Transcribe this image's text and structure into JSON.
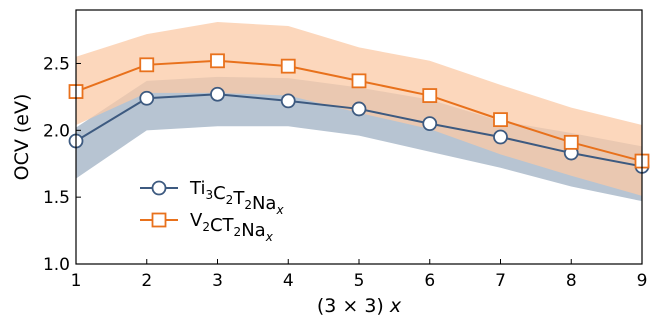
{
  "chart_data": {
    "type": "line",
    "xlabel": {
      "main": "(3 × 3) ",
      "var": "x"
    },
    "ylabel": "OCV (eV)",
    "xlim": [
      1,
      9
    ],
    "ylim": [
      1.0,
      2.9
    ],
    "x": [
      1,
      2,
      3,
      4,
      5,
      6,
      7,
      8,
      9
    ],
    "xticks": [
      "1",
      "2",
      "3",
      "4",
      "5",
      "6",
      "7",
      "8",
      "9"
    ],
    "yticks": [
      1.0,
      1.5,
      2.0,
      2.5
    ],
    "ytick_labels": [
      "1.0",
      "1.5",
      "2.0",
      "2.5"
    ],
    "grid": false,
    "legend_position": "lower-left",
    "series": [
      {
        "name": "Ti3C2T2Nax",
        "legend_parts": [
          [
            "Ti",
            ""
          ],
          [
            "3",
            "sub"
          ],
          [
            "C",
            ""
          ],
          [
            "2",
            "sub"
          ],
          [
            "T",
            ""
          ],
          [
            "2",
            "sub"
          ],
          [
            "Na",
            ""
          ],
          [
            "x",
            "sub-italic"
          ]
        ],
        "color": "#3d5a80",
        "band_color": "#b7c4d2",
        "marker": "circle",
        "values": [
          1.92,
          2.24,
          2.27,
          2.22,
          2.16,
          2.05,
          1.95,
          1.83,
          1.73
        ],
        "band_upper": [
          2.02,
          2.37,
          2.4,
          2.39,
          2.32,
          2.23,
          2.07,
          1.98,
          1.88
        ],
        "band_lower": [
          1.64,
          2.0,
          2.03,
          2.03,
          1.96,
          1.84,
          1.72,
          1.58,
          1.47
        ]
      },
      {
        "name": "V2CT2Nax",
        "legend_parts": [
          [
            "V",
            ""
          ],
          [
            "2",
            "sub"
          ],
          [
            "CT",
            ""
          ],
          [
            "2",
            "sub"
          ],
          [
            "Na",
            ""
          ],
          [
            "x",
            "sub-italic"
          ]
        ],
        "color": "#e8711c",
        "band_color": "#fbc9a5",
        "marker": "square",
        "values": [
          2.29,
          2.49,
          2.52,
          2.48,
          2.37,
          2.26,
          2.08,
          1.91,
          1.77
        ],
        "band_upper": [
          2.55,
          2.72,
          2.81,
          2.78,
          2.62,
          2.52,
          2.34,
          2.17,
          2.04
        ],
        "band_lower": [
          2.04,
          2.28,
          2.28,
          2.26,
          2.13,
          2.01,
          1.82,
          1.66,
          1.51
        ]
      }
    ]
  }
}
